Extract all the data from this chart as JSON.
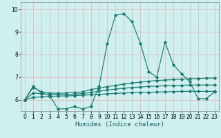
{
  "xlabel": "Humidex (Indice chaleur)",
  "bg_color": "#cef0f0",
  "grid_color": "#e8b8b8",
  "line_color": "#1a7a6e",
  "xlim": [
    -0.5,
    23.5
  ],
  "ylim": [
    5.5,
    10.3
  ],
  "yticks": [
    6,
    7,
    8,
    9,
    10
  ],
  "xticks": [
    0,
    1,
    2,
    3,
    4,
    5,
    6,
    7,
    8,
    9,
    10,
    11,
    12,
    13,
    14,
    15,
    16,
    17,
    18,
    19,
    20,
    21,
    22,
    23
  ],
  "main_line_x": [
    0,
    1,
    2,
    3,
    4,
    5,
    6,
    7,
    8,
    9,
    10,
    11,
    12,
    13,
    14,
    15,
    16,
    17,
    18,
    19,
    20,
    21,
    22,
    23
  ],
  "main_line_y": [
    6.0,
    6.6,
    6.3,
    6.2,
    5.6,
    5.6,
    5.7,
    5.6,
    5.7,
    6.6,
    8.5,
    9.75,
    9.8,
    9.45,
    8.5,
    7.25,
    7.0,
    8.55,
    7.55,
    7.15,
    6.8,
    6.05,
    6.05,
    6.35
  ],
  "line2_x": [
    0,
    1,
    2,
    3,
    4,
    5,
    6,
    7,
    8,
    9,
    10,
    11,
    12,
    13,
    14,
    15,
    16,
    17,
    18,
    19,
    20,
    21,
    22,
    23
  ],
  "line2_y": [
    6.0,
    6.55,
    6.35,
    6.3,
    6.28,
    6.3,
    6.32,
    6.35,
    6.45,
    6.52,
    6.58,
    6.63,
    6.7,
    6.74,
    6.78,
    6.82,
    6.85,
    6.87,
    6.89,
    6.91,
    6.93,
    6.94,
    6.95,
    6.96
  ],
  "line3_x": [
    0,
    1,
    2,
    3,
    4,
    5,
    6,
    7,
    8,
    9,
    10,
    11,
    12,
    13,
    14,
    15,
    16,
    17,
    18,
    19,
    20,
    21,
    22,
    23
  ],
  "line3_y": [
    6.0,
    6.3,
    6.27,
    6.24,
    6.22,
    6.23,
    6.25,
    6.27,
    6.32,
    6.38,
    6.43,
    6.47,
    6.51,
    6.54,
    6.56,
    6.59,
    6.6,
    6.62,
    6.63,
    6.64,
    6.65,
    6.65,
    6.65,
    6.65
  ],
  "line4_x": [
    0,
    1,
    2,
    3,
    4,
    5,
    6,
    7,
    8,
    9,
    10,
    11,
    12,
    13,
    14,
    15,
    16,
    17,
    18,
    19,
    20,
    21,
    22,
    23
  ],
  "line4_y": [
    6.0,
    6.1,
    6.13,
    6.15,
    6.16,
    6.17,
    6.18,
    6.2,
    6.22,
    6.24,
    6.26,
    6.28,
    6.3,
    6.31,
    6.32,
    6.33,
    6.34,
    6.35,
    6.36,
    6.37,
    6.37,
    6.37,
    6.37,
    6.37
  ]
}
